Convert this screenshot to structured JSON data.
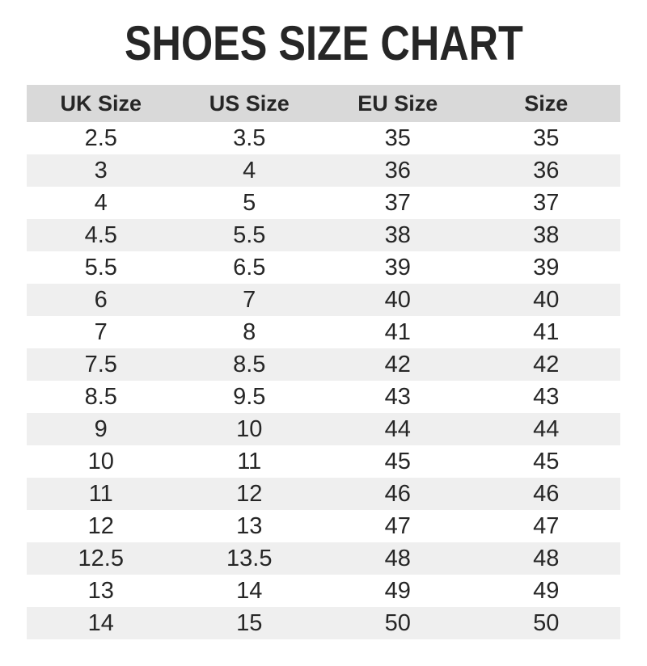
{
  "page_title": "SHOES SIZE CHART",
  "colors": {
    "title": "#262626",
    "text": "#262626",
    "header_bg": "#d9d9d9",
    "row_alt_bg": "#efefef"
  },
  "chart_data": {
    "type": "table",
    "title": "SHOES SIZE CHART",
    "columns": [
      "UK Size",
      "US Size",
      "EU Size",
      "Size"
    ],
    "rows": [
      [
        "2.5",
        "3.5",
        "35",
        "35"
      ],
      [
        "3",
        "4",
        "36",
        "36"
      ],
      [
        "4",
        "5",
        "37",
        "37"
      ],
      [
        "4.5",
        "5.5",
        "38",
        "38"
      ],
      [
        "5.5",
        "6.5",
        "39",
        "39"
      ],
      [
        "6",
        "7",
        "40",
        "40"
      ],
      [
        "7",
        "8",
        "41",
        "41"
      ],
      [
        "7.5",
        "8.5",
        "42",
        "42"
      ],
      [
        "8.5",
        "9.5",
        "43",
        "43"
      ],
      [
        "9",
        "10",
        "44",
        "44"
      ],
      [
        "10",
        "11",
        "45",
        "45"
      ],
      [
        "11",
        "12",
        "46",
        "46"
      ],
      [
        "12",
        "13",
        "47",
        "47"
      ],
      [
        "12.5",
        "13.5",
        "48",
        "48"
      ],
      [
        "13",
        "14",
        "49",
        "49"
      ],
      [
        "14",
        "15",
        "50",
        "50"
      ]
    ]
  }
}
